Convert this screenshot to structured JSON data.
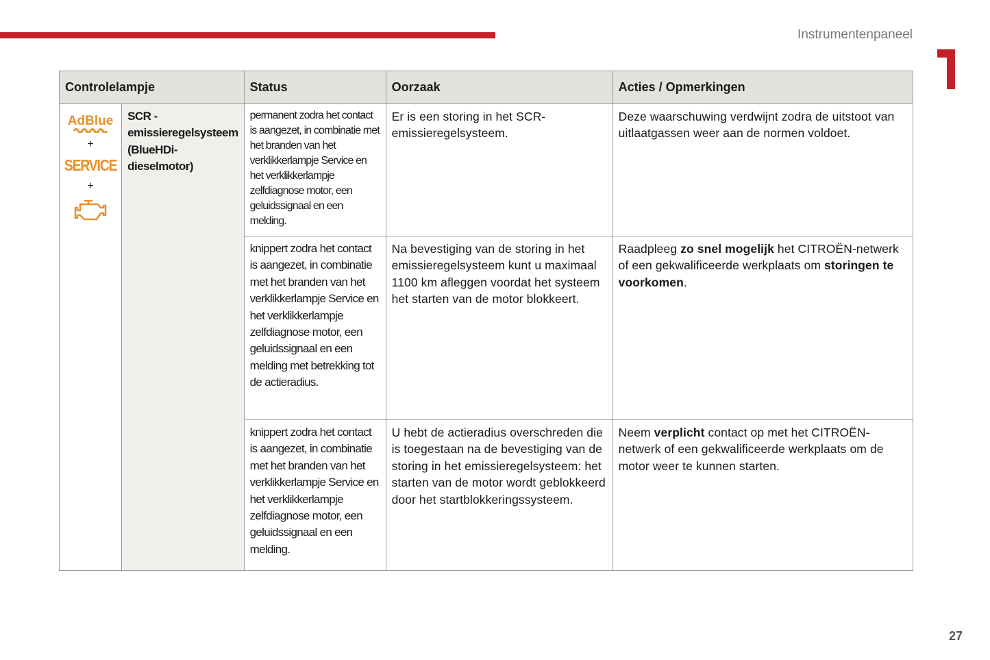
{
  "header": {
    "section": "Instrumentenpaneel",
    "chapter": "1"
  },
  "colors": {
    "accent": "#c4202a",
    "warning": "#e8902c"
  },
  "table": {
    "headers": [
      "Controlelampje",
      "Status",
      "Oorzaak",
      "Acties / Opmerkingen"
    ],
    "lamp": {
      "icons": [
        "adblue-icon",
        "service-icon",
        "engine-icon"
      ],
      "adblue": "AdBlue",
      "service": "SERVICE",
      "plus": "+",
      "name": "SCR - emissieregelsysteem (BlueHDi-dieselmotor)"
    },
    "rows": [
      {
        "status": "permanent zodra het contact is aangezet, in combinatie met het branden van het verklikkerlampje Service en het verklikkerlampje zelfdiagnose motor, een geluidssignaal en een melding.",
        "cause": "Er is een storing in het SCR-emissieregelsysteem.",
        "actions": [
          {
            "t": "Deze waarschuwing verdwijnt zodra de uitstoot van uitlaatgassen weer aan de normen voldoet."
          }
        ]
      },
      {
        "status": "knippert zodra het contact is aangezet, in combinatie met het branden van het verklikkerlampje Service en het verklikkerlampje zelfdiagnose motor, een geluidssignaal en een melding met betrekking tot de actieradius.",
        "cause": "Na bevestiging van de storing in het emissieregelsysteem kunt u maximaal 1100 km afleggen voordat het systeem het starten van de motor blokkeert.",
        "actions": [
          {
            "t": "Raadpleeg "
          },
          {
            "t": "zo snel mogelijk",
            "b": true
          },
          {
            "t": " het CITROËN-netwerk of een gekwalificeerde werkplaats om "
          },
          {
            "t": "storingen te voorkomen",
            "b": true
          },
          {
            "t": "."
          }
        ]
      },
      {
        "status": "knippert zodra het contact is aangezet, in combinatie met het branden van het verklikkerlampje Service en het verklikkerlampje zelfdiagnose motor, een geluidssignaal en een melding.",
        "cause": "U hebt de actieradius overschreden die is toegestaan na de bevestiging van de storing in het emissieregelsysteem: het starten van de motor wordt geblokkeerd door het startblokkeringssysteem.",
        "actions": [
          {
            "t": "Neem "
          },
          {
            "t": "verplicht",
            "b": true
          },
          {
            "t": " contact op met het CITROËN-netwerk of een gekwalificeerde werkplaats om de motor weer te kunnen starten."
          }
        ]
      }
    ]
  },
  "footer": {
    "page": "27"
  }
}
